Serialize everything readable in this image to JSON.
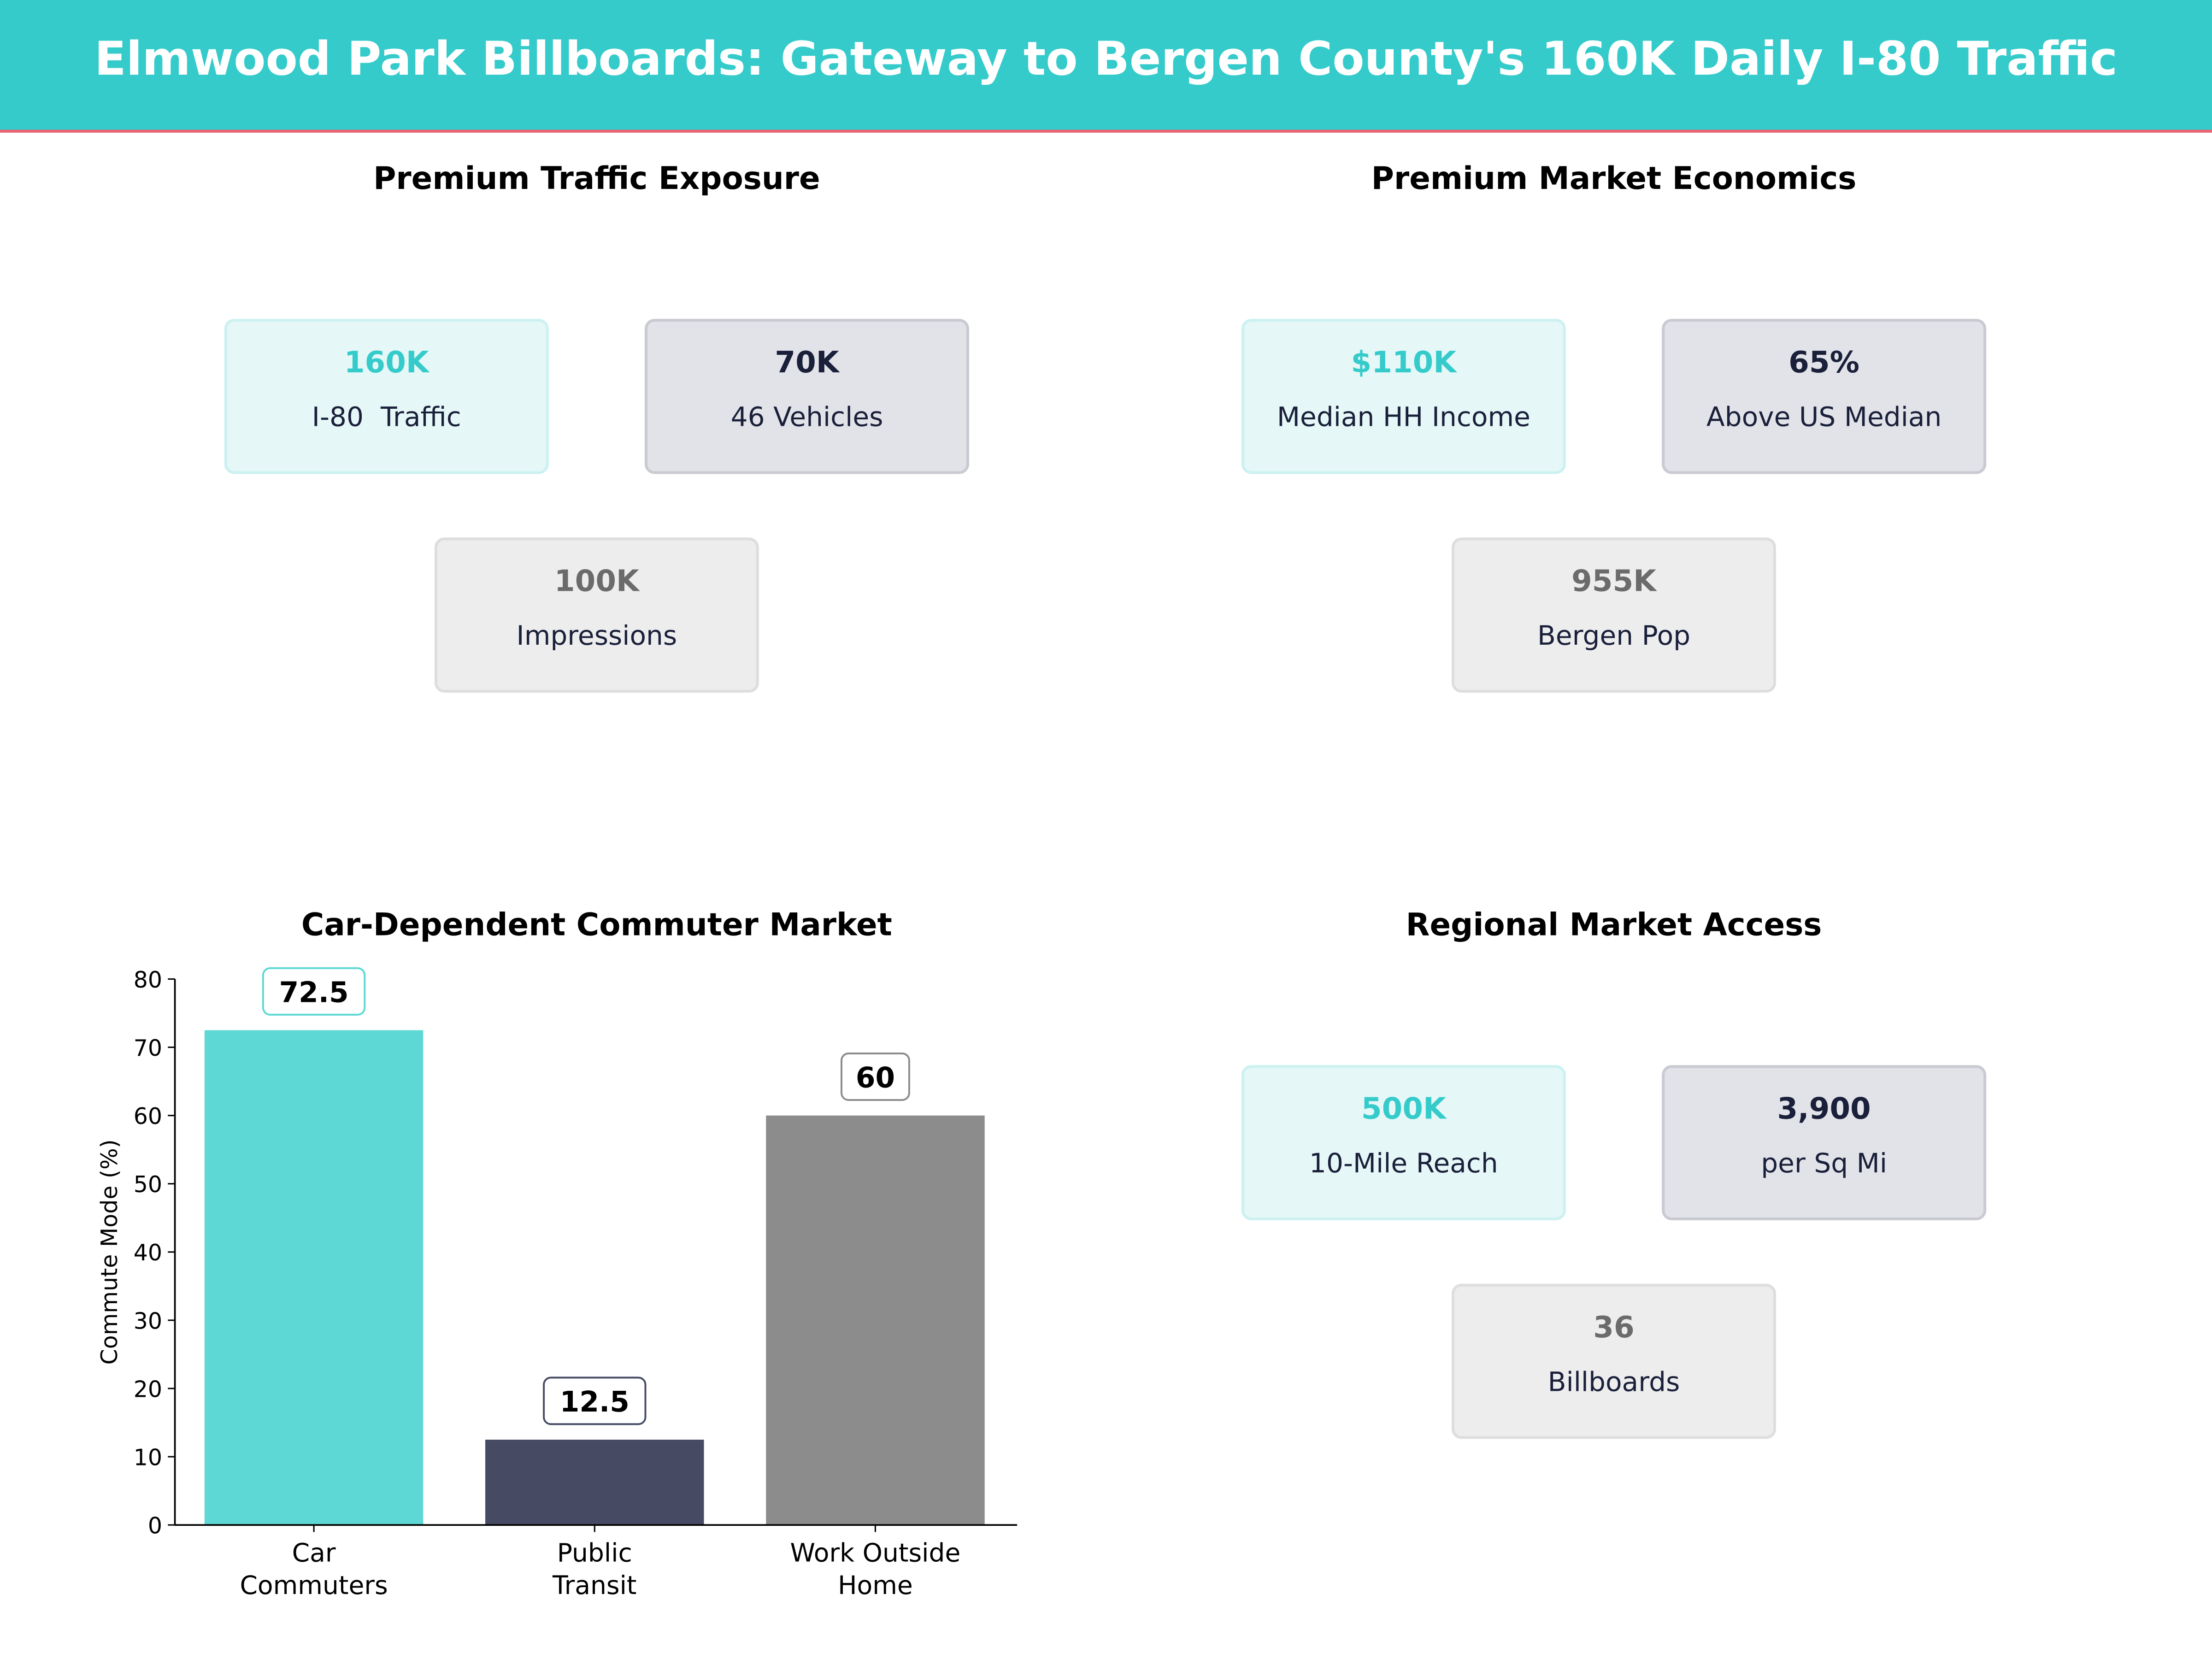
{
  "header": {
    "title": "Elmwood Park Billboards: Gateway to Bergen County's 160K Daily I-80 Traffic"
  },
  "panels": [
    {
      "title": "Premium Traffic Exposure",
      "cards": [
        {
          "value": "160K",
          "label": "I-80  Traffic",
          "style": "teal"
        },
        {
          "value": "70K",
          "label": "46 Vehicles",
          "style": "navy"
        },
        {
          "value": "100K",
          "label": "Impressions",
          "style": "gray"
        }
      ]
    },
    {
      "title": "Premium Market Economics",
      "cards": [
        {
          "value": "$110K",
          "label": "Median HH Income",
          "style": "teal"
        },
        {
          "value": "65%",
          "label": "Above US Median",
          "style": "navy"
        },
        {
          "value": "955K",
          "label": "Bergen Pop",
          "style": "gray"
        }
      ]
    },
    {
      "title": "Regional Market Access",
      "cards": [
        {
          "value": "500K",
          "label": "10-Mile Reach",
          "style": "teal"
        },
        {
          "value": "3,900",
          "label": "per Sq Mi",
          "style": "navy"
        },
        {
          "value": "36",
          "label": "Billboards",
          "style": "gray"
        }
      ]
    }
  ],
  "colors": {
    "teal": "#36CBCB",
    "navy": "#464B63",
    "gray": "#8C8C8C",
    "accent_line": "#F0606E"
  },
  "chart_data": {
    "type": "bar",
    "title": "Car-Dependent Commuter Market",
    "ylabel": "Commute Mode (%)",
    "xlabel": "",
    "categories": [
      "Car\nCommuters",
      "Public\nTransit",
      "Work Outside\nHome"
    ],
    "values": [
      72.5,
      12.5,
      60
    ],
    "data_labels": [
      "72.5",
      "12.5",
      "60"
    ],
    "bar_colors": [
      "#5DD8D4",
      "#464B63",
      "#8C8C8C"
    ],
    "ylim": [
      0,
      80
    ],
    "yticks": [
      0,
      10,
      20,
      30,
      40,
      50,
      60,
      70,
      80
    ],
    "grid": false
  }
}
